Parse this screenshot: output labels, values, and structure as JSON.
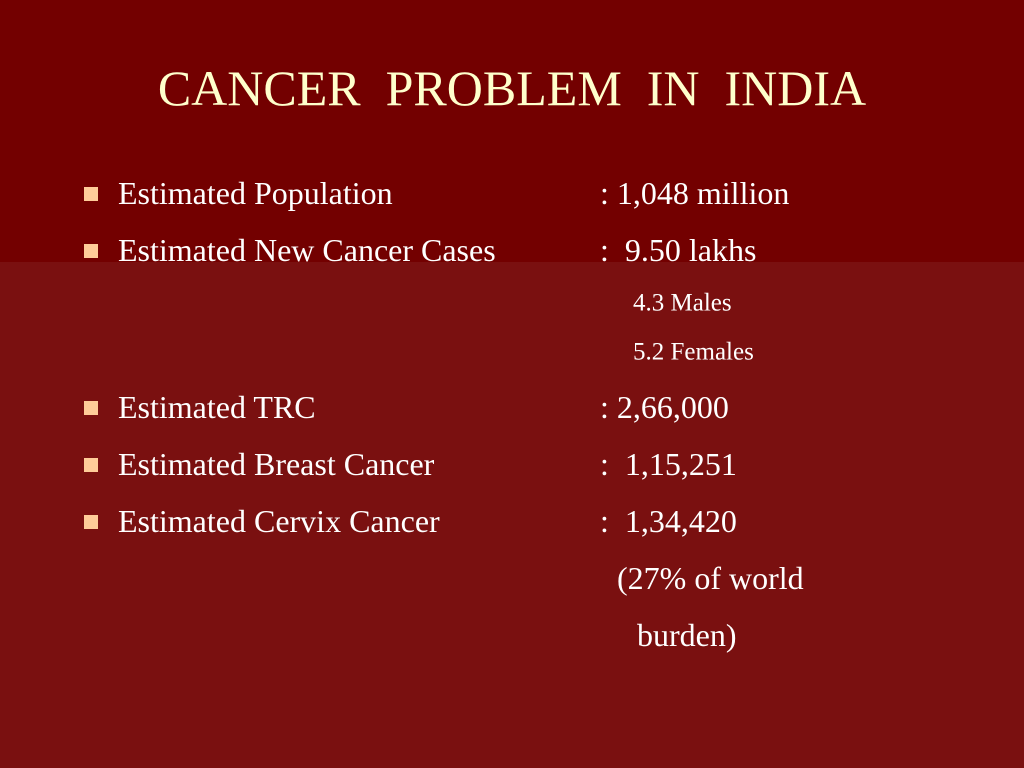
{
  "title": "CANCER  PROBLEM  IN  INDIA",
  "items": [
    {
      "label": "Estimated Population",
      "value": ": 1,048 million"
    },
    {
      "label": "Estimated New Cancer Cases",
      "value": ":  9.50 lakhs",
      "notes": [
        "4.3 Males",
        "5.2 Females"
      ]
    },
    {
      "label": "Estimated TRC",
      "value": ": 2,66,000"
    },
    {
      "label": "Estimated Breast Cancer",
      "value": ":  1,15,251"
    },
    {
      "label": "Estimated Cervix Cancer",
      "value": ":  1,34,420",
      "notes": [
        "(27% of world",
        "burden)"
      ]
    }
  ]
}
